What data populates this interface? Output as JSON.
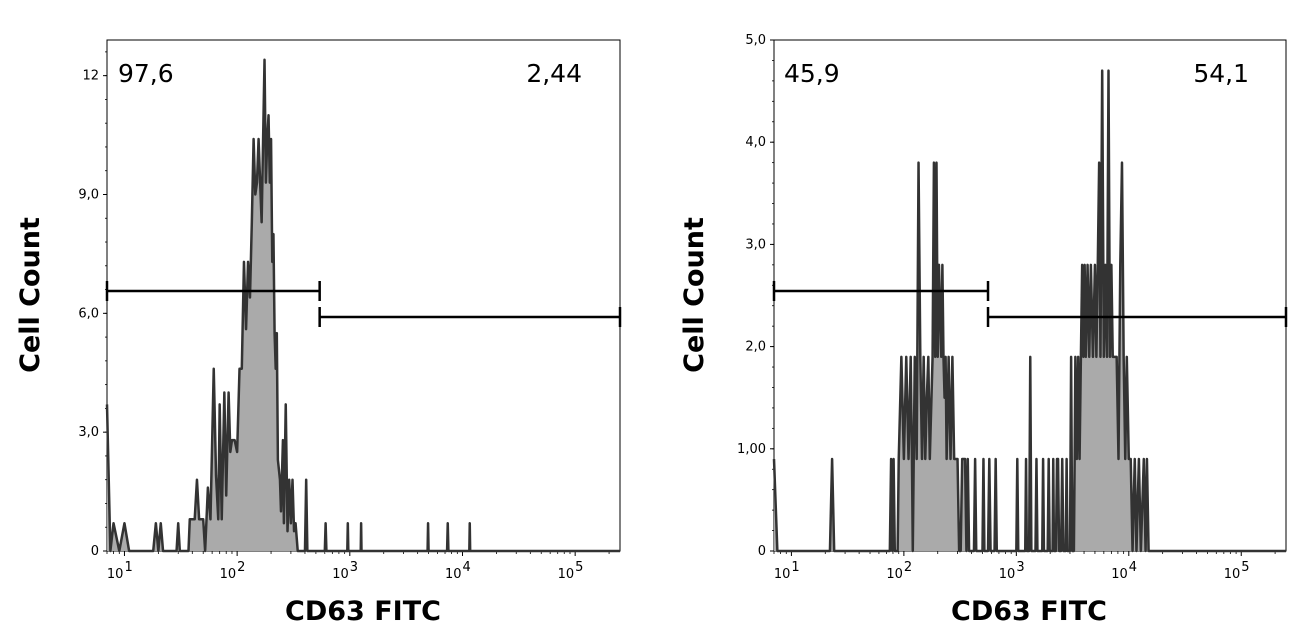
{
  "chart_data": [
    {
      "type": "histogram",
      "xlabel": "CD63 FITC",
      "ylabel": "Cell Count",
      "x_scale": "log",
      "xlim": [
        7,
        250000
      ],
      "ylim": [
        0,
        12.9
      ],
      "x_ticks": [
        {
          "base": "10",
          "exp": "1",
          "value": 10
        },
        {
          "base": "10",
          "exp": "2",
          "value": 100
        },
        {
          "base": "10",
          "exp": "3",
          "value": 1000
        },
        {
          "base": "10",
          "exp": "4",
          "value": 10000
        },
        {
          "base": "10",
          "exp": "5",
          "value": 100000
        }
      ],
      "y_ticks": [
        {
          "label": "0",
          "value": 0
        },
        {
          "label": "3,0",
          "value": 3
        },
        {
          "label": "6,0",
          "value": 6
        },
        {
          "label": "9,0",
          "value": 9
        },
        {
          "label": "12",
          "value": 12
        }
      ],
      "gates": [
        {
          "label": "97,6",
          "x_range": [
            7,
            540
          ],
          "y": 6.5
        },
        {
          "label": "2,44",
          "x_range": [
            540,
            250000
          ],
          "y": 5.9
        }
      ],
      "series": [
        {
          "points": [
            [
              7,
              3.7
            ],
            [
              7.5,
              0
            ],
            [
              8,
              0.7
            ],
            [
              9,
              0
            ],
            [
              10,
              0.7
            ],
            [
              11,
              0
            ],
            [
              18,
              0
            ],
            [
              19,
              0.7
            ],
            [
              20,
              0
            ],
            [
              21,
              0.7
            ],
            [
              22,
              0
            ],
            [
              29,
              0
            ],
            [
              30,
              0.7
            ],
            [
              31,
              0
            ],
            [
              37,
              0
            ],
            [
              38,
              0.8
            ],
            [
              42,
              0.8
            ],
            [
              44,
              1.8
            ],
            [
              46,
              0.8
            ],
            [
              50,
              0.8
            ],
            [
              52,
              0
            ],
            [
              55,
              1.6
            ],
            [
              58,
              0.8
            ],
            [
              62,
              4.6
            ],
            [
              65,
              1.9
            ],
            [
              68,
              0.8
            ],
            [
              70,
              3.7
            ],
            [
              73,
              0.8
            ],
            [
              77,
              4.0
            ],
            [
              80,
              1.4
            ],
            [
              84,
              4.0
            ],
            [
              87,
              2.5
            ],
            [
              90,
              2.8
            ],
            [
              95,
              2.8
            ],
            [
              100,
              2.5
            ],
            [
              105,
              4.6
            ],
            [
              110,
              4.6
            ],
            [
              115,
              7.3
            ],
            [
              120,
              5.6
            ],
            [
              125,
              7.3
            ],
            [
              130,
              6.4
            ],
            [
              135,
              8.3
            ],
            [
              140,
              10.4
            ],
            [
              145,
              9.0
            ],
            [
              150,
              9.3
            ],
            [
              155,
              10.4
            ],
            [
              160,
              9.3
            ],
            [
              165,
              8.3
            ],
            [
              170,
              10.4
            ],
            [
              175,
              12.4
            ],
            [
              180,
              9.3
            ],
            [
              185,
              10.4
            ],
            [
              190,
              11.0
            ],
            [
              195,
              9.3
            ],
            [
              200,
              10.4
            ],
            [
              205,
              7.3
            ],
            [
              210,
              8.0
            ],
            [
              215,
              5.5
            ],
            [
              220,
              4.6
            ],
            [
              225,
              5.5
            ],
            [
              230,
              2.3
            ],
            [
              240,
              1.8
            ],
            [
              245,
              1.0
            ],
            [
              255,
              2.8
            ],
            [
              260,
              0.7
            ],
            [
              270,
              3.7
            ],
            [
              280,
              0.5
            ],
            [
              290,
              1.8
            ],
            [
              300,
              0.7
            ],
            [
              310,
              1.8
            ],
            [
              320,
              0.5
            ],
            [
              330,
              0.7
            ],
            [
              345,
              0
            ],
            [
              400,
              0
            ],
            [
              410,
              1.8
            ],
            [
              420,
              0
            ],
            [
              600,
              0
            ],
            [
              610,
              0.7
            ],
            [
              620,
              0
            ],
            [
              950,
              0
            ],
            [
              960,
              0.7
            ],
            [
              970,
              0
            ],
            [
              1250,
              0
            ],
            [
              1260,
              0.7
            ],
            [
              1270,
              0
            ],
            [
              4900,
              0
            ],
            [
              4950,
              0.7
            ],
            [
              5000,
              0
            ],
            [
              7300,
              0
            ],
            [
              7400,
              0.7
            ],
            [
              7500,
              0
            ],
            [
              11500,
              0
            ],
            [
              11600,
              0.7
            ],
            [
              11700,
              0
            ],
            [
              250000,
              0
            ]
          ]
        }
      ]
    },
    {
      "type": "histogram",
      "xlabel": "CD63 FITC",
      "ylabel": "Cell Count",
      "x_scale": "log",
      "xlim": [
        7,
        250000
      ],
      "ylim": [
        0,
        5.0
      ],
      "x_ticks": [
        {
          "base": "10",
          "exp": "1",
          "value": 10
        },
        {
          "base": "10",
          "exp": "2",
          "value": 100
        },
        {
          "base": "10",
          "exp": "3",
          "value": 1000
        },
        {
          "base": "10",
          "exp": "4",
          "value": 10000
        },
        {
          "base": "10",
          "exp": "5",
          "value": 100000
        }
      ],
      "y_ticks": [
        {
          "label": "0",
          "value": 0
        },
        {
          "label": "1,00",
          "value": 1
        },
        {
          "label": "2,0",
          "value": 2
        },
        {
          "label": "3,0",
          "value": 3
        },
        {
          "label": "4,0",
          "value": 4
        },
        {
          "label": "5,0",
          "value": 5
        }
      ],
      "gates": [
        {
          "label": "45,9",
          "x_range": [
            7,
            560
          ],
          "y": 2.54
        },
        {
          "label": "54,1",
          "x_range": [
            560,
            250000
          ],
          "y": 2.29
        }
      ],
      "series": [
        {
          "points": [
            [
              7,
              0.9
            ],
            [
              7.5,
              0
            ],
            [
              22,
              0
            ],
            [
              23,
              0.9
            ],
            [
              24,
              0
            ],
            [
              75,
              0
            ],
            [
              77,
              0.9
            ],
            [
              79,
              0
            ],
            [
              81,
              0.9
            ],
            [
              83,
              0
            ],
            [
              88,
              0
            ],
            [
              90,
              0.9
            ],
            [
              95,
              1.9
            ],
            [
              100,
              0.9
            ],
            [
              105,
              1.9
            ],
            [
              110,
              0.9
            ],
            [
              115,
              1.9
            ],
            [
              118,
              0.9
            ],
            [
              120,
              0
            ],
            [
              125,
              1.9
            ],
            [
              130,
              0.9
            ],
            [
              135,
              3.8
            ],
            [
              140,
              1.9
            ],
            [
              145,
              0.9
            ],
            [
              150,
              1.9
            ],
            [
              155,
              0.9
            ],
            [
              160,
              1.5
            ],
            [
              165,
              1.9
            ],
            [
              170,
              0.9
            ],
            [
              180,
              1.9
            ],
            [
              185,
              3.8
            ],
            [
              190,
              1.9
            ],
            [
              195,
              3.8
            ],
            [
              200,
              1.9
            ],
            [
              205,
              2.8
            ],
            [
              215,
              1.9
            ],
            [
              220,
              2.8
            ],
            [
              225,
              1.9
            ],
            [
              230,
              1.5
            ],
            [
              235,
              1.9
            ],
            [
              240,
              0.9
            ],
            [
              250,
              1.9
            ],
            [
              260,
              0.9
            ],
            [
              270,
              1.9
            ],
            [
              280,
              0.9
            ],
            [
              285,
              0.9
            ],
            [
              300,
              0.9
            ],
            [
              310,
              0
            ],
            [
              320,
              0
            ],
            [
              330,
              0.9
            ],
            [
              340,
              0.9
            ],
            [
              350,
              0.9
            ],
            [
              360,
              0
            ],
            [
              370,
              0.9
            ],
            [
              380,
              0
            ],
            [
              420,
              0
            ],
            [
              430,
              0.9
            ],
            [
              440,
              0
            ],
            [
              500,
              0
            ],
            [
              510,
              0.9
            ],
            [
              520,
              0
            ],
            [
              560,
              0
            ],
            [
              575,
              0.9
            ],
            [
              590,
              0
            ],
            [
              640,
              0
            ],
            [
              655,
              0.9
            ],
            [
              670,
              0
            ],
            [
              1000,
              0
            ],
            [
              1020,
              0.9
            ],
            [
              1040,
              0
            ],
            [
              1200,
              0
            ],
            [
              1220,
              0.9
            ],
            [
              1240,
              0
            ],
            [
              1300,
              0
            ],
            [
              1330,
              1.9
            ],
            [
              1360,
              0
            ],
            [
              1480,
              0
            ],
            [
              1510,
              0.9
            ],
            [
              1540,
              0
            ],
            [
              1700,
              0
            ],
            [
              1730,
              0.9
            ],
            [
              1760,
              0
            ],
            [
              1900,
              0
            ],
            [
              1940,
              0.9
            ],
            [
              1980,
              0
            ],
            [
              2100,
              0
            ],
            [
              2130,
              0.9
            ],
            [
              2160,
              0
            ],
            [
              2250,
              0
            ],
            [
              2300,
              0.9
            ],
            [
              2350,
              0.9
            ],
            [
              2400,
              0
            ],
            [
              2500,
              0
            ],
            [
              2560,
              0.9
            ],
            [
              2620,
              0
            ],
            [
              2750,
              0
            ],
            [
              2800,
              0.9
            ],
            [
              2850,
              0
            ],
            [
              3000,
              0
            ],
            [
              3070,
              1.9
            ],
            [
              3140,
              0
            ],
            [
              3250,
              0
            ],
            [
              3300,
              0.9
            ],
            [
              3350,
              1.9
            ],
            [
              3450,
              0.9
            ],
            [
              3550,
              1.9
            ],
            [
              3650,
              0.9
            ],
            [
              3750,
              1.9
            ],
            [
              3850,
              2.8
            ],
            [
              3950,
              1.9
            ],
            [
              4050,
              2.8
            ],
            [
              4150,
              1.9
            ],
            [
              4300,
              2.8
            ],
            [
              4450,
              1.9
            ],
            [
              4600,
              2.8
            ],
            [
              4800,
              1.9
            ],
            [
              5000,
              2.8
            ],
            [
              5150,
              1.9
            ],
            [
              5300,
              2.8
            ],
            [
              5450,
              3.8
            ],
            [
              5600,
              1.9
            ],
            [
              5800,
              4.7
            ],
            [
              6000,
              1.9
            ],
            [
              6200,
              2.8
            ],
            [
              6400,
              1.9
            ],
            [
              6600,
              4.7
            ],
            [
              6800,
              1.9
            ],
            [
              7000,
              2.8
            ],
            [
              7200,
              1.9
            ],
            [
              7500,
              1.9
            ],
            [
              7800,
              1.9
            ],
            [
              8100,
              0.9
            ],
            [
              8400,
              2.8
            ],
            [
              8700,
              3.8
            ],
            [
              9000,
              1.9
            ],
            [
              9300,
              0.9
            ],
            [
              9600,
              1.9
            ],
            [
              10000,
              0.9
            ],
            [
              10400,
              0.9
            ],
            [
              10800,
              0
            ],
            [
              11300,
              0.9
            ],
            [
              11700,
              0
            ],
            [
              12300,
              0.9
            ],
            [
              12800,
              0
            ],
            [
              13600,
              0.9
            ],
            [
              14100,
              0
            ],
            [
              14500,
              0.9
            ],
            [
              15000,
              0
            ],
            [
              250000,
              0
            ]
          ]
        }
      ]
    }
  ]
}
